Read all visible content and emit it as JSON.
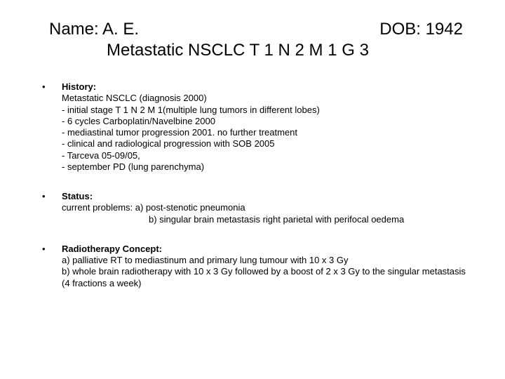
{
  "title": {
    "name_label": "Name: A. E.",
    "dob_label": "DOB: 1942",
    "diagnosis_line": "Metastatic NSCLC T 1 N 2 M 1 G 3"
  },
  "sections": {
    "history": {
      "label": "History:",
      "lines": {
        "l0": "Metastatic NSCLC (diagnosis 2000)",
        "l1": "- initial stage T 1 N 2 M 1(multiple lung tumors in different lobes)",
        "l2": "- 6 cycles Carboplatin/Navelbine 2000",
        "l3": "- mediastinal tumor progression 2001. no further treatment",
        "l4": "- clinical and radiological progression with SOB 2005",
        "l5": "- Tarceva 05-09/05,",
        "l6": "- september PD (lung parenchyma)"
      }
    },
    "status": {
      "label": "Status:",
      "line_a": "current problems:  a) post-stenotic pneumonia",
      "line_b": "b) singular brain metastasis right parietal with perifocal oedema"
    },
    "radio": {
      "label": "Radiotherapy Concept:",
      "line_a": "a) palliative RT to mediastinum and primary lung tumour with 10 x 3 Gy",
      "line_b": "b) whole brain radiotherapy with 10 x 3 Gy followed by a boost of 2 x 3 Gy to the singular metastasis (4 fractions a week)"
    }
  }
}
